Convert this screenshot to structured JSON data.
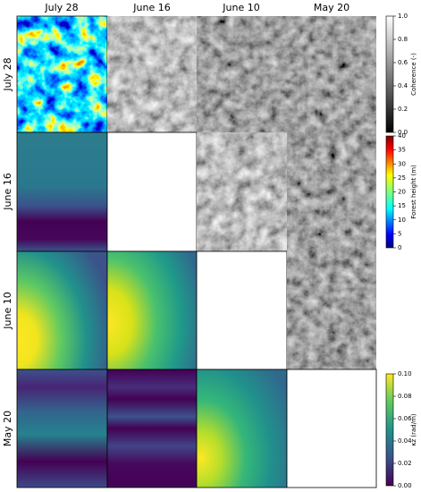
{
  "columns": [
    "July 28",
    "June 16",
    "June 10",
    "May 20"
  ],
  "rows": [
    "July 28",
    "June 16",
    "June 10",
    "May 20"
  ],
  "colorbars": [
    {
      "label": "Coherence (-)",
      "lim": [
        0,
        1
      ],
      "ticks": [
        {
          "value": 0,
          "label": "0.0"
        },
        0.2,
        0.4,
        0.6,
        0.8,
        {
          "value": 1,
          "label": "1.0"
        }
      ]
    },
    {
      "label": "Forest height (m)",
      "lim": [
        0,
        40
      ],
      "ticks": [
        0,
        5,
        10,
        15,
        20,
        25,
        30,
        35,
        40
      ]
    },
    {
      "label": "κz (rad/m)",
      "lim": [
        0,
        0.1
      ],
      "ticks": [
        {
          "value": 0,
          "label": "0.00"
        },
        0.02,
        0.04,
        0.06,
        0.08,
        {
          "value": 0.1,
          "label": "0.10"
        }
      ]
    }
  ]
}
